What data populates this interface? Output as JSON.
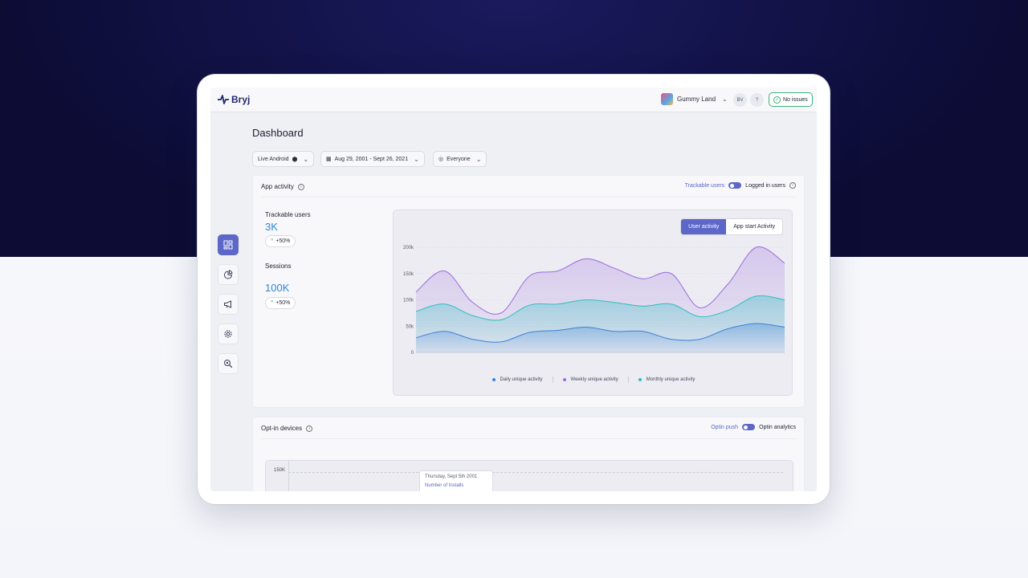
{
  "app": {
    "logo_text": "Bryj"
  },
  "topbar": {
    "app_name": "Gummy Land",
    "user_initials": "BV",
    "help_label": "?",
    "status_label": "No issues"
  },
  "sidebar": {
    "items": [
      {
        "name": "dashboard",
        "icon": "dashboard-icon",
        "active": true
      },
      {
        "name": "segments",
        "icon": "pie-chart-icon",
        "active": false
      },
      {
        "name": "campaigns",
        "icon": "megaphone-icon",
        "active": false
      },
      {
        "name": "settings",
        "icon": "gear-icon",
        "active": false
      },
      {
        "name": "explore",
        "icon": "search-icon",
        "active": false
      }
    ]
  },
  "page": {
    "title": "Dashboard"
  },
  "filters": {
    "platform": "Live Android",
    "date_range": "Aug 29, 2001 - Sept 26, 2021",
    "audience": "Everyone"
  },
  "app_activity": {
    "title": "App activity",
    "toggle_left": "Trackable users",
    "toggle_right": "Logged in users",
    "metrics": [
      {
        "label": "Trackable users",
        "value": "3K",
        "change": "+50%"
      },
      {
        "label": "Sessions",
        "value": "100K",
        "change": "+50%"
      }
    ],
    "tabs": [
      "User activity",
      "App start Activity"
    ],
    "active_tab": "User activity"
  },
  "opt_in": {
    "title": "Opt-in devices",
    "toggle_left": "Optin push",
    "toggle_right": "Optin analytics",
    "y_tick_top": "150K",
    "tooltip_date": "Thursday, Sept 5th 2001",
    "tooltip_key": "Number of Installs"
  },
  "colors": {
    "accent": "#5c67c8",
    "positive": "#3bb17c",
    "value": "#2f86d9"
  },
  "chart_data": {
    "type": "area",
    "x": [
      0,
      1,
      2,
      3,
      4,
      5,
      6,
      7,
      8,
      9,
      10,
      11,
      12,
      13
    ],
    "yticks": [
      "200k",
      "150k",
      "100k",
      "50k",
      "0"
    ],
    "ylim": [
      0,
      200000
    ],
    "series": [
      {
        "name": "Daily unique activity",
        "color": "#3b82d6",
        "values": [
          28000,
          40000,
          25000,
          20000,
          38000,
          42000,
          48000,
          40000,
          40000,
          25000,
          25000,
          45000,
          55000,
          48000
        ]
      },
      {
        "name": "Weekly unique activity",
        "color": "#9b6be0",
        "values": [
          115000,
          155000,
          95000,
          75000,
          145000,
          155000,
          178000,
          160000,
          140000,
          150000,
          85000,
          130000,
          200000,
          170000
        ]
      },
      {
        "name": "Monthly unique activity",
        "color": "#2bbfc0",
        "values": [
          78000,
          92000,
          70000,
          62000,
          90000,
          92000,
          100000,
          95000,
          88000,
          92000,
          68000,
          80000,
          107000,
          100000
        ]
      }
    ]
  }
}
